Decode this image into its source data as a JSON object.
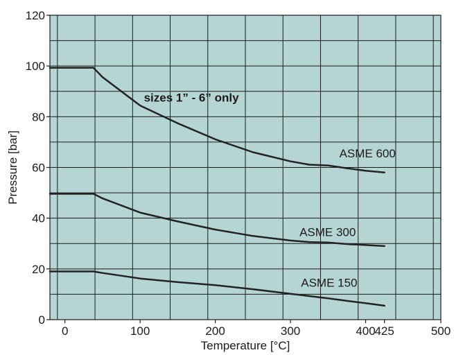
{
  "chart_data": {
    "type": "line",
    "title": "",
    "xlabel": "Temperature [°C]",
    "ylabel": "Pressure [bar]",
    "xlim": [
      -20,
      500
    ],
    "ylim": [
      0,
      120
    ],
    "x_ticks": [
      0,
      100,
      200,
      300,
      400,
      425,
      500
    ],
    "y_ticks": [
      0,
      20,
      40,
      60,
      80,
      100,
      120
    ],
    "x_tick_labels": [
      "0",
      "100",
      "200",
      "300",
      "400",
      "425",
      "500"
    ],
    "y_tick_labels": [
      "0",
      "20",
      "40",
      "60",
      "80",
      "100",
      "120"
    ],
    "grid": true,
    "legend": "none",
    "colors": {
      "plot_background": "#b5d5d4",
      "line": "#222222",
      "grid": "#1a1a1a"
    },
    "annotations": [
      {
        "text": "sizes 1” - 6” only",
        "x": 105,
        "y": 86
      }
    ],
    "series": [
      {
        "name": "ASME 600",
        "x": [
          -20,
          38,
          50,
          100,
          150,
          200,
          250,
          300,
          325,
          350,
          375,
          400,
          425
        ],
        "y": [
          99.3,
          99.3,
          95.6,
          84.4,
          77.4,
          71.1,
          66.0,
          62.4,
          61.1,
          60.8,
          59.7,
          58.7,
          58.0
        ],
        "label_x": 365,
        "label_y": 64
      },
      {
        "name": "ASME 300",
        "x": [
          -20,
          38,
          50,
          100,
          150,
          200,
          250,
          300,
          325,
          350,
          375,
          400,
          425
        ],
        "y": [
          49.6,
          49.6,
          47.8,
          42.2,
          38.7,
          35.5,
          33.0,
          31.2,
          30.6,
          30.4,
          29.8,
          29.4,
          29.0
        ],
        "label_x": 312,
        "label_y": 33
      },
      {
        "name": "ASME 150",
        "x": [
          -20,
          38,
          50,
          100,
          150,
          200,
          250,
          300,
          325,
          350,
          375,
          400,
          425
        ],
        "y": [
          19.0,
          19.0,
          18.4,
          16.2,
          14.8,
          13.6,
          12.0,
          10.2,
          9.3,
          8.4,
          7.4,
          6.5,
          5.5
        ],
        "label_x": 314,
        "label_y": 13
      }
    ]
  }
}
